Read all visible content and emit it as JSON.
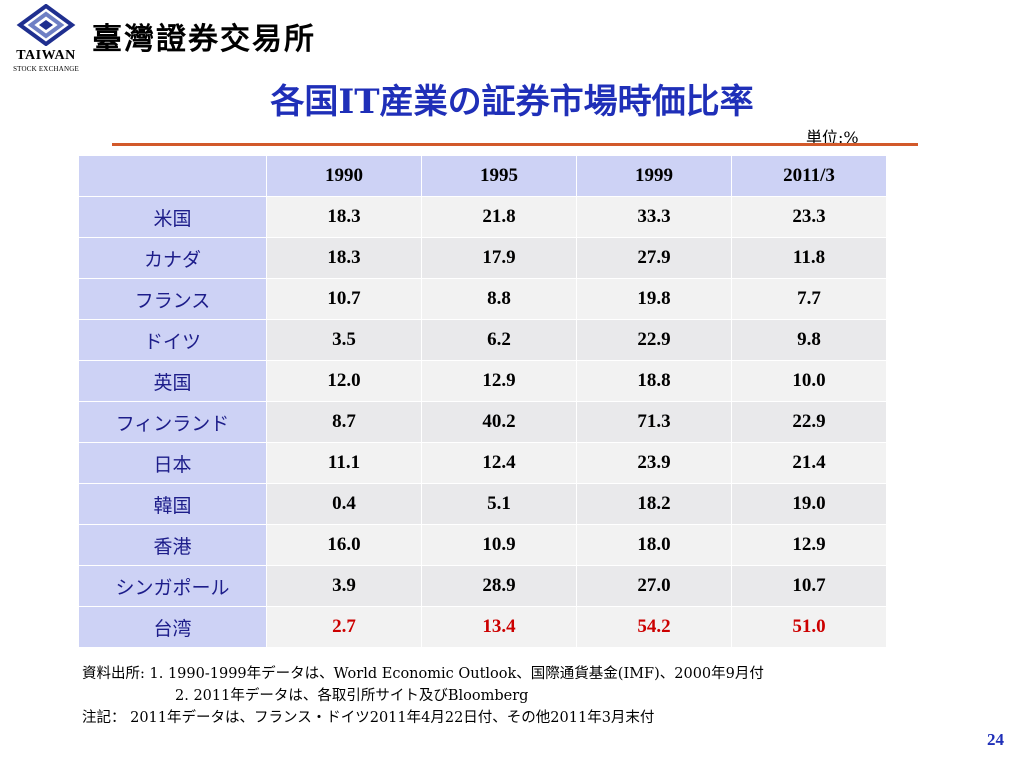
{
  "header": {
    "logo_name": "TAIWAN",
    "logo_sub": "STOCK EXCHANGE",
    "exchange_name": "臺灣證券交易所"
  },
  "title": "各国IT産業の証券市場時価比率",
  "unit": "単位:%",
  "table": {
    "columns": [
      "1990",
      "1995",
      "1999",
      "2011/3"
    ],
    "rows": [
      {
        "country": "米国",
        "values": [
          "18.3",
          "21.8",
          "33.3",
          "23.3"
        ]
      },
      {
        "country": "カナダ",
        "values": [
          "18.3",
          "17.9",
          "27.9",
          "11.8"
        ]
      },
      {
        "country": "フランス",
        "values": [
          "10.7",
          "8.8",
          "19.8",
          "7.7"
        ]
      },
      {
        "country": "ドイツ",
        "values": [
          "3.5",
          "6.2",
          "22.9",
          "9.8"
        ]
      },
      {
        "country": "英国",
        "values": [
          "12.0",
          "12.9",
          "18.8",
          "10.0"
        ]
      },
      {
        "country": "フィンランド",
        "values": [
          "8.7",
          "40.2",
          "71.3",
          "22.9"
        ]
      },
      {
        "country": "日本",
        "values": [
          "11.1",
          "12.4",
          "23.9",
          "21.4"
        ]
      },
      {
        "country": "韓国",
        "values": [
          "0.4",
          "5.1",
          "18.2",
          "19.0"
        ]
      },
      {
        "country": "香港",
        "values": [
          "16.0",
          "10.9",
          "18.0",
          "12.9"
        ]
      },
      {
        "country": "シンガポール",
        "values": [
          "3.9",
          "28.9",
          "27.0",
          "10.7"
        ]
      },
      {
        "country": "台湾",
        "values": [
          "2.7",
          "13.4",
          "54.2",
          "51.0"
        ],
        "highlight": true
      }
    ],
    "highlight_color": "#cc0000",
    "header_bg": "#cdd2f5"
  },
  "notes": {
    "line1": "資料出所: 1. 1990-1999年データは、World Economic Outlook、国際通貨基金(IMF)、2000年9月付",
    "line2": "2. 2011年データは、各取引所サイト及びBloomberg",
    "line3": "注記： 2011年データは、フランス・ドイツ2011年4月22日付、その他2011年3月末付"
  },
  "page_number": "24",
  "colors": {
    "title": "#1f2fb8",
    "rule": "#d2592a"
  }
}
